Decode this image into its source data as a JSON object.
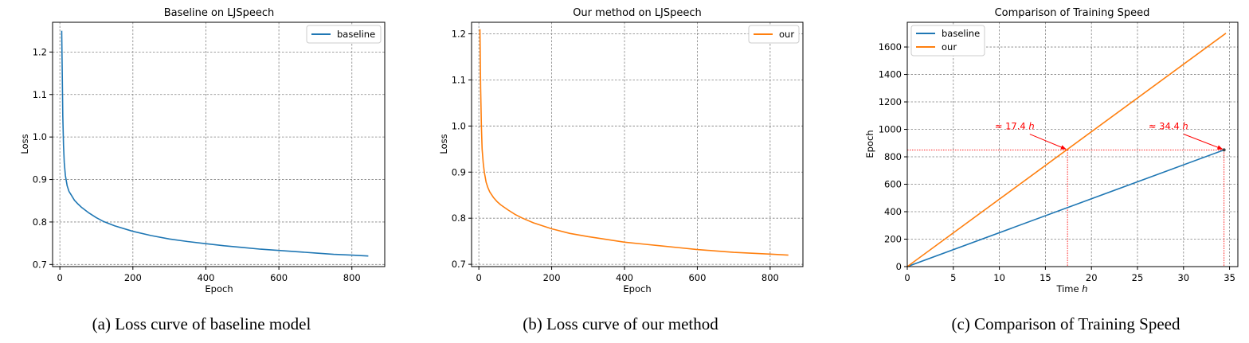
{
  "chart_data": [
    {
      "type": "line",
      "title": "Baseline on LJSpeech",
      "xlabel": "Epoch",
      "ylabel": "Loss",
      "xlim": [
        -20,
        890
      ],
      "ylim": [
        0.695,
        1.27
      ],
      "xticks": [
        0,
        200,
        400,
        600,
        800
      ],
      "yticks": [
        0.7,
        0.8,
        0.9,
        1.0,
        1.1,
        1.2
      ],
      "grid": true,
      "legend": "top-right",
      "series": [
        {
          "name": "baseline",
          "color": "#1f77b4",
          "x": [
            5,
            8,
            10,
            12,
            15,
            20,
            25,
            30,
            40,
            50,
            60,
            80,
            100,
            120,
            150,
            200,
            250,
            300,
            350,
            400,
            450,
            500,
            550,
            600,
            650,
            700,
            750,
            800,
            845
          ],
          "y": [
            1.25,
            1.05,
            0.98,
            0.94,
            0.91,
            0.885,
            0.872,
            0.865,
            0.851,
            0.842,
            0.834,
            0.821,
            0.81,
            0.801,
            0.791,
            0.778,
            0.768,
            0.76,
            0.754,
            0.749,
            0.744,
            0.74,
            0.736,
            0.733,
            0.73,
            0.727,
            0.724,
            0.722,
            0.72
          ]
        }
      ],
      "caption": "(a) Loss curve of baseline model"
    },
    {
      "type": "line",
      "title": "Our method on LJSpeech",
      "xlabel": "Epoch",
      "ylabel": "Loss",
      "xlim": [
        -20,
        890
      ],
      "ylim": [
        0.695,
        1.225
      ],
      "xticks": [
        0,
        200,
        400,
        600,
        800
      ],
      "yticks": [
        0.7,
        0.8,
        0.9,
        1.0,
        1.1,
        1.2
      ],
      "grid": true,
      "legend": "top-right",
      "series": [
        {
          "name": "our",
          "color": "#ff7f0e",
          "x": [
            3,
            5,
            7,
            9,
            12,
            15,
            20,
            25,
            30,
            40,
            50,
            60,
            80,
            100,
            120,
            150,
            200,
            250,
            300,
            350,
            400,
            450,
            500,
            550,
            600,
            650,
            700,
            750,
            800,
            850
          ],
          "y": [
            1.21,
            1.08,
            1.0,
            0.95,
            0.92,
            0.9,
            0.878,
            0.866,
            0.857,
            0.845,
            0.836,
            0.829,
            0.818,
            0.808,
            0.8,
            0.79,
            0.777,
            0.767,
            0.76,
            0.754,
            0.748,
            0.744,
            0.74,
            0.736,
            0.732,
            0.729,
            0.726,
            0.724,
            0.722,
            0.72
          ]
        }
      ],
      "caption": "(b) Loss curve of our method"
    },
    {
      "type": "line",
      "title": "Comparison of Training Speed",
      "xlabel": "Time ",
      "xlabel_var": "h",
      "ylabel": "Epoch",
      "xlim": [
        0,
        35.9
      ],
      "ylim": [
        0,
        1780
      ],
      "xticks": [
        0,
        5,
        10,
        15,
        20,
        25,
        30,
        35
      ],
      "yticks": [
        0,
        200,
        400,
        600,
        800,
        1000,
        1200,
        1400,
        1600
      ],
      "grid": true,
      "legend": "top-left",
      "series": [
        {
          "name": "baseline",
          "color": "#1f77b4",
          "x": [
            0,
            34.4
          ],
          "y": [
            0,
            850
          ]
        },
        {
          "name": "our",
          "color": "#ff7f0e",
          "x": [
            0,
            34.6
          ],
          "y": [
            0,
            1700
          ]
        }
      ],
      "reference_line": {
        "y": 850,
        "x_marks": [
          17.4,
          34.4
        ],
        "color": "#ff0000"
      },
      "annotations": [
        {
          "prefix": "≈ ",
          "value": "17.4",
          "unit": "h",
          "point": [
            17.4,
            850
          ],
          "text_at": [
            9.5,
            1000
          ]
        },
        {
          "prefix": "≈ ",
          "value": "34.4",
          "unit": "h",
          "point": [
            34.4,
            850
          ],
          "text_at": [
            26.2,
            1000
          ]
        }
      ],
      "caption": "(c) Comparison of Training Speed"
    }
  ]
}
